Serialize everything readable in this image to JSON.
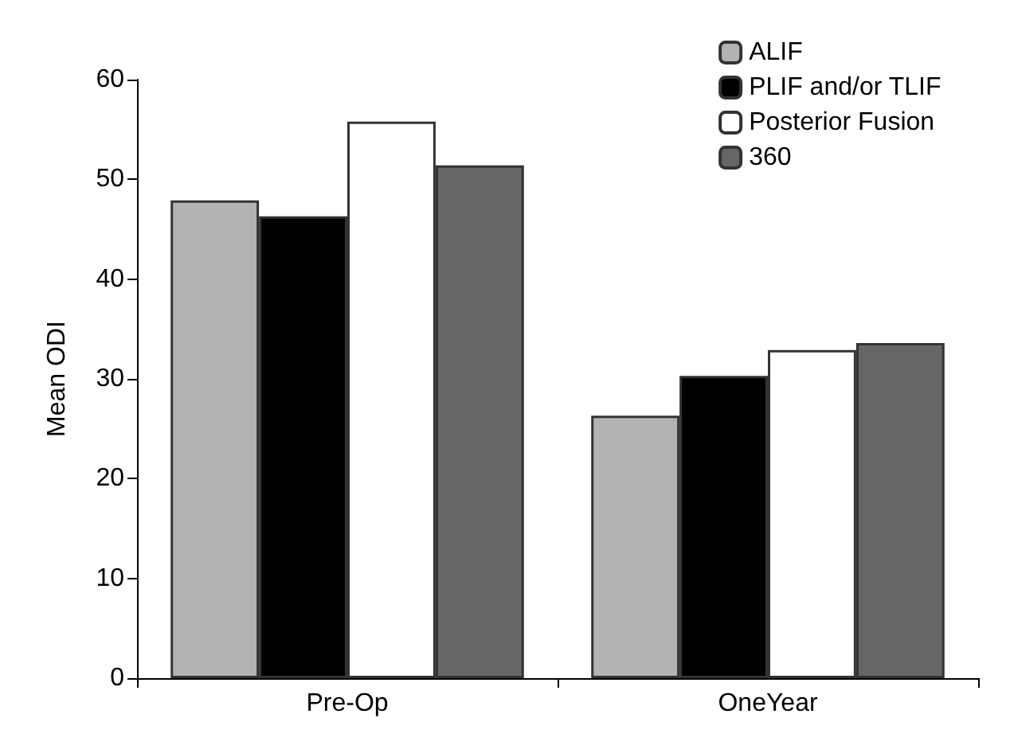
{
  "chart_data": {
    "type": "bar",
    "ylabel": "Mean ODI",
    "categories": [
      "Pre-Op",
      "OneYear"
    ],
    "series": [
      {
        "name": "ALIF",
        "color": "#b3b3b3",
        "values": [
          47.9,
          26.3
        ]
      },
      {
        "name": "PLIF and/or TLIF",
        "color": "#000000",
        "values": [
          46.3,
          30.3
        ]
      },
      {
        "name": "Posterior Fusion",
        "color": "#ffffff",
        "values": [
          55.8,
          32.9
        ]
      },
      {
        "name": "360",
        "color": "#666666",
        "values": [
          51.4,
          33.6
        ]
      }
    ],
    "ylim": [
      0,
      60
    ],
    "yticks": [
      0,
      10,
      20,
      30,
      40,
      50,
      60
    ],
    "grid": false,
    "legend": "top right"
  }
}
